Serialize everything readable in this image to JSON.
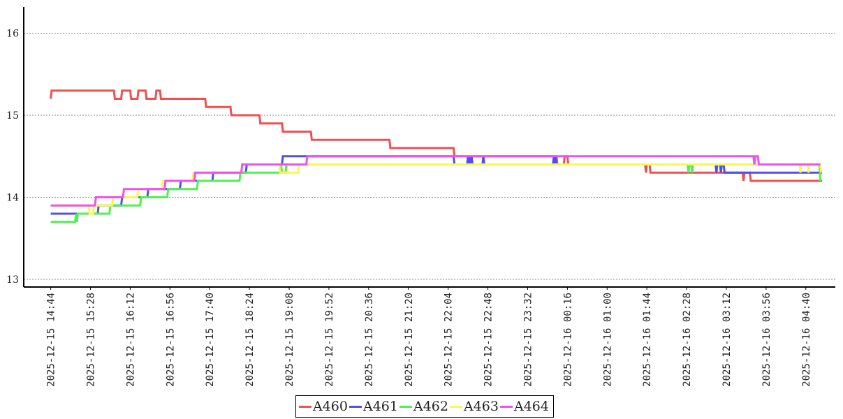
{
  "chart_data": {
    "type": "line",
    "title": "",
    "xlabel": "",
    "ylabel": "",
    "ylim": [
      12.9,
      16.3
    ],
    "y_ticks": [
      "13",
      "14",
      "15",
      "16"
    ],
    "x_tick_labels": [
      "2025-12-15 14:44",
      "2025-12-15 15:28",
      "2025-12-15 16:12",
      "2025-12-15 16:56",
      "2025-12-15 17:40",
      "2025-12-15 18:24",
      "2025-12-15 19:08",
      "2025-12-15 19:52",
      "2025-12-15 20:36",
      "2025-12-15 21:20",
      "2025-12-15 22:04",
      "2025-12-15 22:48",
      "2025-12-15 23:32",
      "2025-12-16 00:16",
      "2025-12-16 01:00",
      "2025-12-16 01:44",
      "2025-12-16 02:28",
      "2025-12-16 03:12",
      "2025-12-16 03:56",
      "2025-12-16 04:40"
    ],
    "x_range": [
      "2025-12-15 14:18",
      "2025-12-16 05:08"
    ],
    "grid": "horizontal dotted",
    "legend_position": "bottom-center",
    "series": [
      {
        "name": "A460",
        "color": "#f05050",
        "points": [
          [
            "2025-12-15 14:44",
            15.2
          ],
          [
            "2025-12-15 14:45",
            15.3
          ],
          [
            "2025-12-15 15:54",
            15.3
          ],
          [
            "2025-12-15 15:55",
            15.2
          ],
          [
            "2025-12-15 16:02",
            15.2
          ],
          [
            "2025-12-15 16:03",
            15.3
          ],
          [
            "2025-12-15 16:12",
            15.3
          ],
          [
            "2025-12-15 16:13",
            15.2
          ],
          [
            "2025-12-15 16:20",
            15.2
          ],
          [
            "2025-12-15 16:21",
            15.3
          ],
          [
            "2025-12-15 16:29",
            15.3
          ],
          [
            "2025-12-15 16:30",
            15.2
          ],
          [
            "2025-12-15 16:40",
            15.2
          ],
          [
            "2025-12-15 16:41",
            15.3
          ],
          [
            "2025-12-15 16:45",
            15.3
          ],
          [
            "2025-12-15 16:46",
            15.2
          ],
          [
            "2025-12-15 17:35",
            15.2
          ],
          [
            "2025-12-15 17:36",
            15.1
          ],
          [
            "2025-12-15 18:03",
            15.1
          ],
          [
            "2025-12-15 18:04",
            15.0
          ],
          [
            "2025-12-15 18:35",
            15.0
          ],
          [
            "2025-12-15 18:36",
            14.9
          ],
          [
            "2025-12-15 19:00",
            14.9
          ],
          [
            "2025-12-15 19:01",
            14.8
          ],
          [
            "2025-12-15 19:32",
            14.8
          ],
          [
            "2025-12-15 19:33",
            14.7
          ],
          [
            "2025-12-15 20:59",
            14.7
          ],
          [
            "2025-12-15 21:00",
            14.6
          ],
          [
            "2025-12-15 22:10",
            14.6
          ],
          [
            "2025-12-15 22:11",
            14.5
          ],
          [
            "2025-12-16 00:04",
            14.5
          ],
          [
            "2025-12-16 00:05",
            14.4
          ],
          [
            "2025-12-16 00:12",
            14.4
          ],
          [
            "2025-12-16 00:13",
            14.5
          ],
          [
            "2025-12-16 00:16",
            14.5
          ],
          [
            "2025-12-16 00:17",
            14.4
          ],
          [
            "2025-12-16 01:42",
            14.4
          ],
          [
            "2025-12-16 01:43",
            14.3
          ],
          [
            "2025-12-16 01:44",
            14.4
          ],
          [
            "2025-12-16 01:47",
            14.4
          ],
          [
            "2025-12-16 01:48",
            14.3
          ],
          [
            "2025-12-16 03:30",
            14.3
          ],
          [
            "2025-12-16 03:31",
            14.2
          ],
          [
            "2025-12-16 03:32",
            14.3
          ],
          [
            "2025-12-16 03:38",
            14.3
          ],
          [
            "2025-12-16 03:39",
            14.2
          ],
          [
            "2025-12-16 04:58",
            14.2
          ]
        ]
      },
      {
        "name": "A461",
        "color": "#5050e8",
        "points": [
          [
            "2025-12-15 14:44",
            13.8
          ],
          [
            "2025-12-15 15:36",
            13.8
          ],
          [
            "2025-12-15 15:37",
            13.9
          ],
          [
            "2025-12-15 16:02",
            13.9
          ],
          [
            "2025-12-15 16:03",
            14.0
          ],
          [
            "2025-12-15 16:31",
            14.0
          ],
          [
            "2025-12-15 16:32",
            14.1
          ],
          [
            "2025-12-15 17:07",
            14.1
          ],
          [
            "2025-12-15 17:08",
            14.2
          ],
          [
            "2025-12-15 17:43",
            14.2
          ],
          [
            "2025-12-15 17:44",
            14.3
          ],
          [
            "2025-12-15 18:20",
            14.3
          ],
          [
            "2025-12-15 18:21",
            14.4
          ],
          [
            "2025-12-15 19:00",
            14.4
          ],
          [
            "2025-12-15 19:01",
            14.5
          ],
          [
            "2025-12-15 22:10",
            14.5
          ],
          [
            "2025-12-15 22:11",
            14.4
          ],
          [
            "2025-12-15 22:25",
            14.4
          ],
          [
            "2025-12-15 22:26",
            14.5
          ],
          [
            "2025-12-15 22:27",
            14.4
          ],
          [
            "2025-12-15 22:28",
            14.5
          ],
          [
            "2025-12-15 22:29",
            14.4
          ],
          [
            "2025-12-15 22:30",
            14.5
          ],
          [
            "2025-12-15 22:31",
            14.4
          ],
          [
            "2025-12-15 22:42",
            14.4
          ],
          [
            "2025-12-15 22:43",
            14.5
          ],
          [
            "2025-12-15 22:44",
            14.4
          ],
          [
            "2025-12-16 00:00",
            14.4
          ],
          [
            "2025-12-16 00:01",
            14.5
          ],
          [
            "2025-12-16 00:02",
            14.4
          ],
          [
            "2025-12-16 00:03",
            14.5
          ],
          [
            "2025-12-16 00:04",
            14.4
          ],
          [
            "2025-12-16 03:00",
            14.4
          ],
          [
            "2025-12-16 03:01",
            14.3
          ],
          [
            "2025-12-16 03:02",
            14.4
          ],
          [
            "2025-12-16 03:05",
            14.4
          ],
          [
            "2025-12-16 03:06",
            14.3
          ],
          [
            "2025-12-16 03:07",
            14.4
          ],
          [
            "2025-12-16 03:09",
            14.4
          ],
          [
            "2025-12-16 03:10",
            14.3
          ],
          [
            "2025-12-16 04:58",
            14.3
          ]
        ]
      },
      {
        "name": "A462",
        "color": "#50f050",
        "points": [
          [
            "2025-12-15 14:44",
            13.7
          ],
          [
            "2025-12-15 15:11",
            13.7
          ],
          [
            "2025-12-15 15:12",
            13.8
          ],
          [
            "2025-12-15 15:13",
            13.7
          ],
          [
            "2025-12-15 15:14",
            13.8
          ],
          [
            "2025-12-15 15:49",
            13.8
          ],
          [
            "2025-12-15 15:50",
            13.9
          ],
          [
            "2025-12-15 16:23",
            13.9
          ],
          [
            "2025-12-15 16:24",
            14.0
          ],
          [
            "2025-12-15 16:53",
            14.0
          ],
          [
            "2025-12-15 16:54",
            14.1
          ],
          [
            "2025-12-15 17:26",
            14.1
          ],
          [
            "2025-12-15 17:27",
            14.2
          ],
          [
            "2025-12-15 18:13",
            14.2
          ],
          [
            "2025-12-15 18:14",
            14.3
          ],
          [
            "2025-12-15 18:58",
            14.3
          ],
          [
            "2025-12-15 18:59",
            14.4
          ],
          [
            "2025-12-15 19:00",
            14.3
          ],
          [
            "2025-12-15 19:04",
            14.3
          ],
          [
            "2025-12-15 19:05",
            14.4
          ],
          [
            "2025-12-16 00:16",
            14.4
          ],
          [
            "2025-12-16 00:17",
            14.4
          ],
          [
            "2025-12-16 02:29",
            14.4
          ],
          [
            "2025-12-16 02:30",
            14.3
          ],
          [
            "2025-12-16 02:31",
            14.4
          ],
          [
            "2025-12-16 02:33",
            14.4
          ],
          [
            "2025-12-16 02:34",
            14.3
          ],
          [
            "2025-12-16 02:35",
            14.4
          ],
          [
            "2025-12-16 04:55",
            14.4
          ],
          [
            "2025-12-16 04:56",
            14.2
          ]
        ]
      },
      {
        "name": "A463",
        "color": "#f8f850",
        "points": [
          [
            "2025-12-15 14:44",
            13.9
          ],
          [
            "2025-12-15 15:26",
            13.9
          ],
          [
            "2025-12-15 15:27",
            13.8
          ],
          [
            "2025-12-15 15:31",
            13.8
          ],
          [
            "2025-12-15 15:32",
            13.9
          ],
          [
            "2025-12-15 15:52",
            13.9
          ],
          [
            "2025-12-15 15:53",
            14.0
          ],
          [
            "2025-12-15 16:20",
            14.0
          ],
          [
            "2025-12-15 16:21",
            14.1
          ],
          [
            "2025-12-15 16:47",
            14.1
          ],
          [
            "2025-12-15 16:48",
            14.2
          ],
          [
            "2025-12-15 17:21",
            14.2
          ],
          [
            "2025-12-15 17:22",
            14.3
          ],
          [
            "2025-12-15 18:15",
            14.3
          ],
          [
            "2025-12-15 18:16",
            14.4
          ],
          [
            "2025-12-15 18:57",
            14.4
          ],
          [
            "2025-12-15 18:58",
            14.3
          ],
          [
            "2025-12-15 19:18",
            14.3
          ],
          [
            "2025-12-15 19:19",
            14.4
          ],
          [
            "2025-12-16 03:41",
            14.4
          ],
          [
            "2025-12-16 04:33",
            14.4
          ],
          [
            "2025-12-16 04:34",
            14.3
          ],
          [
            "2025-12-16 04:35",
            14.4
          ],
          [
            "2025-12-16 04:42",
            14.4
          ],
          [
            "2025-12-16 04:43",
            14.3
          ],
          [
            "2025-12-16 04:44",
            14.4
          ],
          [
            "2025-12-16 04:56",
            14.4
          ],
          [
            "2025-12-16 04:57",
            14.3
          ]
        ]
      },
      {
        "name": "A464",
        "color": "#f050f0",
        "points": [
          [
            "2025-12-15 14:44",
            13.9
          ],
          [
            "2025-12-15 15:33",
            13.9
          ],
          [
            "2025-12-15 15:34",
            14.0
          ],
          [
            "2025-12-15 16:04",
            14.0
          ],
          [
            "2025-12-15 16:05",
            14.1
          ],
          [
            "2025-12-15 16:50",
            14.1
          ],
          [
            "2025-12-15 16:51",
            14.2
          ],
          [
            "2025-12-15 17:23",
            14.2
          ],
          [
            "2025-12-15 17:24",
            14.3
          ],
          [
            "2025-12-15 18:15",
            14.3
          ],
          [
            "2025-12-15 18:16",
            14.4
          ],
          [
            "2025-12-15 19:27",
            14.4
          ],
          [
            "2025-12-15 19:28",
            14.5
          ],
          [
            "2025-12-16 03:42",
            14.5
          ],
          [
            "2025-12-16 03:43",
            14.4
          ],
          [
            "2025-12-16 03:44",
            14.5
          ],
          [
            "2025-12-16 03:47",
            14.5
          ],
          [
            "2025-12-16 03:48",
            14.4
          ],
          [
            "2025-12-16 04:49",
            14.4
          ],
          [
            "2025-12-16 04:50",
            14.4
          ],
          [
            "2025-12-16 04:56",
            14.4
          ]
        ]
      }
    ]
  }
}
